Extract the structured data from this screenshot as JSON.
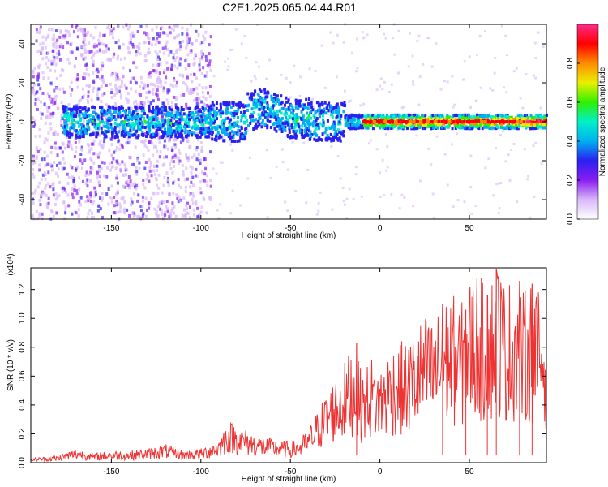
{
  "title": "C2E1.2025.065.04.44.R01",
  "chart_data": [
    {
      "type": "heatmap",
      "xlabel": "Height of straight line (km)",
      "ylabel": "Frequency (Hz)",
      "xlim": [
        -195,
        93
      ],
      "ylim": [
        -50,
        50
      ],
      "xticks": [
        -150,
        -100,
        -50,
        0,
        50
      ],
      "yticks": [
        -40,
        -20,
        0,
        20,
        40
      ],
      "ytick_labels": [
        "-40",
        "-20",
        "0",
        "20",
        "40"
      ],
      "colorbar": {
        "label": "Normalized spectral amplitude",
        "range": [
          0.0,
          1.0
        ],
        "ticks": [
          0.0,
          0.2,
          0.4,
          0.6,
          0.8
        ],
        "tick_labels": [
          "0.0",
          "0.2",
          "0.4",
          "0.6",
          "0.8"
        ],
        "colormap": [
          "#ffffff",
          "#d8b8f8",
          "#8a1ef0",
          "#2a20f0",
          "#00b0f0",
          "#00f0c8",
          "#30f000",
          "#e8f000",
          "#ff8c00",
          "#ff0000",
          "#ff2a8a"
        ]
      },
      "features": {
        "band_center_hz": 0,
        "scatter_region_km": [
          -195,
          -95
        ],
        "bright_band_region_km": [
          -10,
          93
        ],
        "peak_amplitude": 0.95
      }
    },
    {
      "type": "line",
      "xlabel": "Height of straight line (km)",
      "ylabel": "SNR (10 * v/v)",
      "y_multiplier": "(x10^4)",
      "xlim": [
        -195,
        93
      ],
      "ylim": [
        0,
        1.35
      ],
      "xticks": [
        -150,
        -100,
        -50,
        0,
        50
      ],
      "yticks": [
        0.0,
        0.2,
        0.4,
        0.6,
        0.8,
        1.0,
        1.2
      ],
      "ytick_labels": [
        "0.0",
        "0.2",
        "0.4",
        "0.6",
        "0.8",
        "1.0",
        "1.2"
      ],
      "color": "#ee3333",
      "series": [
        {
          "x": [
            -195,
            -180,
            -170,
            -160,
            -150,
            -140,
            -130,
            -120,
            -110,
            -100,
            -90,
            -85,
            -80,
            -70,
            -60,
            -50,
            -45,
            -40,
            -35,
            -30,
            -25,
            -20,
            -15,
            -10,
            -5,
            0,
            5,
            10,
            15,
            20,
            25,
            30,
            35,
            40,
            45,
            50,
            55,
            60,
            65,
            70,
            75,
            80,
            85,
            90,
            93
          ],
          "y": [
            0.02,
            0.03,
            0.06,
            0.04,
            0.05,
            0.05,
            0.06,
            0.08,
            0.05,
            0.06,
            0.1,
            0.18,
            0.16,
            0.12,
            0.1,
            0.09,
            0.1,
            0.14,
            0.22,
            0.3,
            0.36,
            0.42,
            0.5,
            0.38,
            0.45,
            0.4,
            0.48,
            0.52,
            0.5,
            0.58,
            0.62,
            0.6,
            0.68,
            0.72,
            0.66,
            0.78,
            0.82,
            0.7,
            0.9,
            0.75,
            0.8,
            0.72,
            0.78,
            0.7,
            0.65
          ]
        }
      ],
      "peaks": [
        {
          "x": 65,
          "y": 1.34
        },
        {
          "x": 78,
          "y": 1.26
        },
        {
          "x": 85,
          "y": 1.24
        },
        {
          "x": 60,
          "y": 1.16
        },
        {
          "x": 35,
          "y": 1.1
        },
        {
          "x": 48,
          "y": 1.06
        },
        {
          "x": -13,
          "y": 0.83
        }
      ]
    }
  ]
}
